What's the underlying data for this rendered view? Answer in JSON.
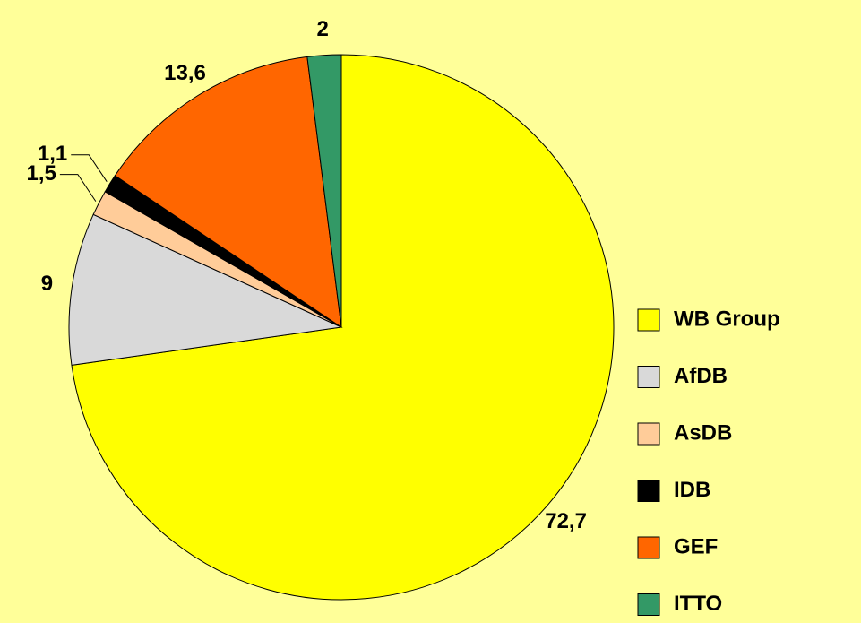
{
  "chart_data": {
    "type": "pie",
    "categories": [
      "WB Group",
      "AfDB",
      "AsDB",
      "IDB",
      "GEF",
      "ITTO"
    ],
    "values": [
      72.7,
      9,
      1.5,
      1.1,
      13.6,
      2
    ],
    "value_labels": [
      "72,7",
      "9",
      "1,5",
      "1,1",
      "13,6",
      "2"
    ],
    "colors": [
      "#ffff00",
      "#d9d9d9",
      "#ffcc99",
      "#000000",
      "#ff6600",
      "#339966"
    ],
    "legend": "right"
  }
}
